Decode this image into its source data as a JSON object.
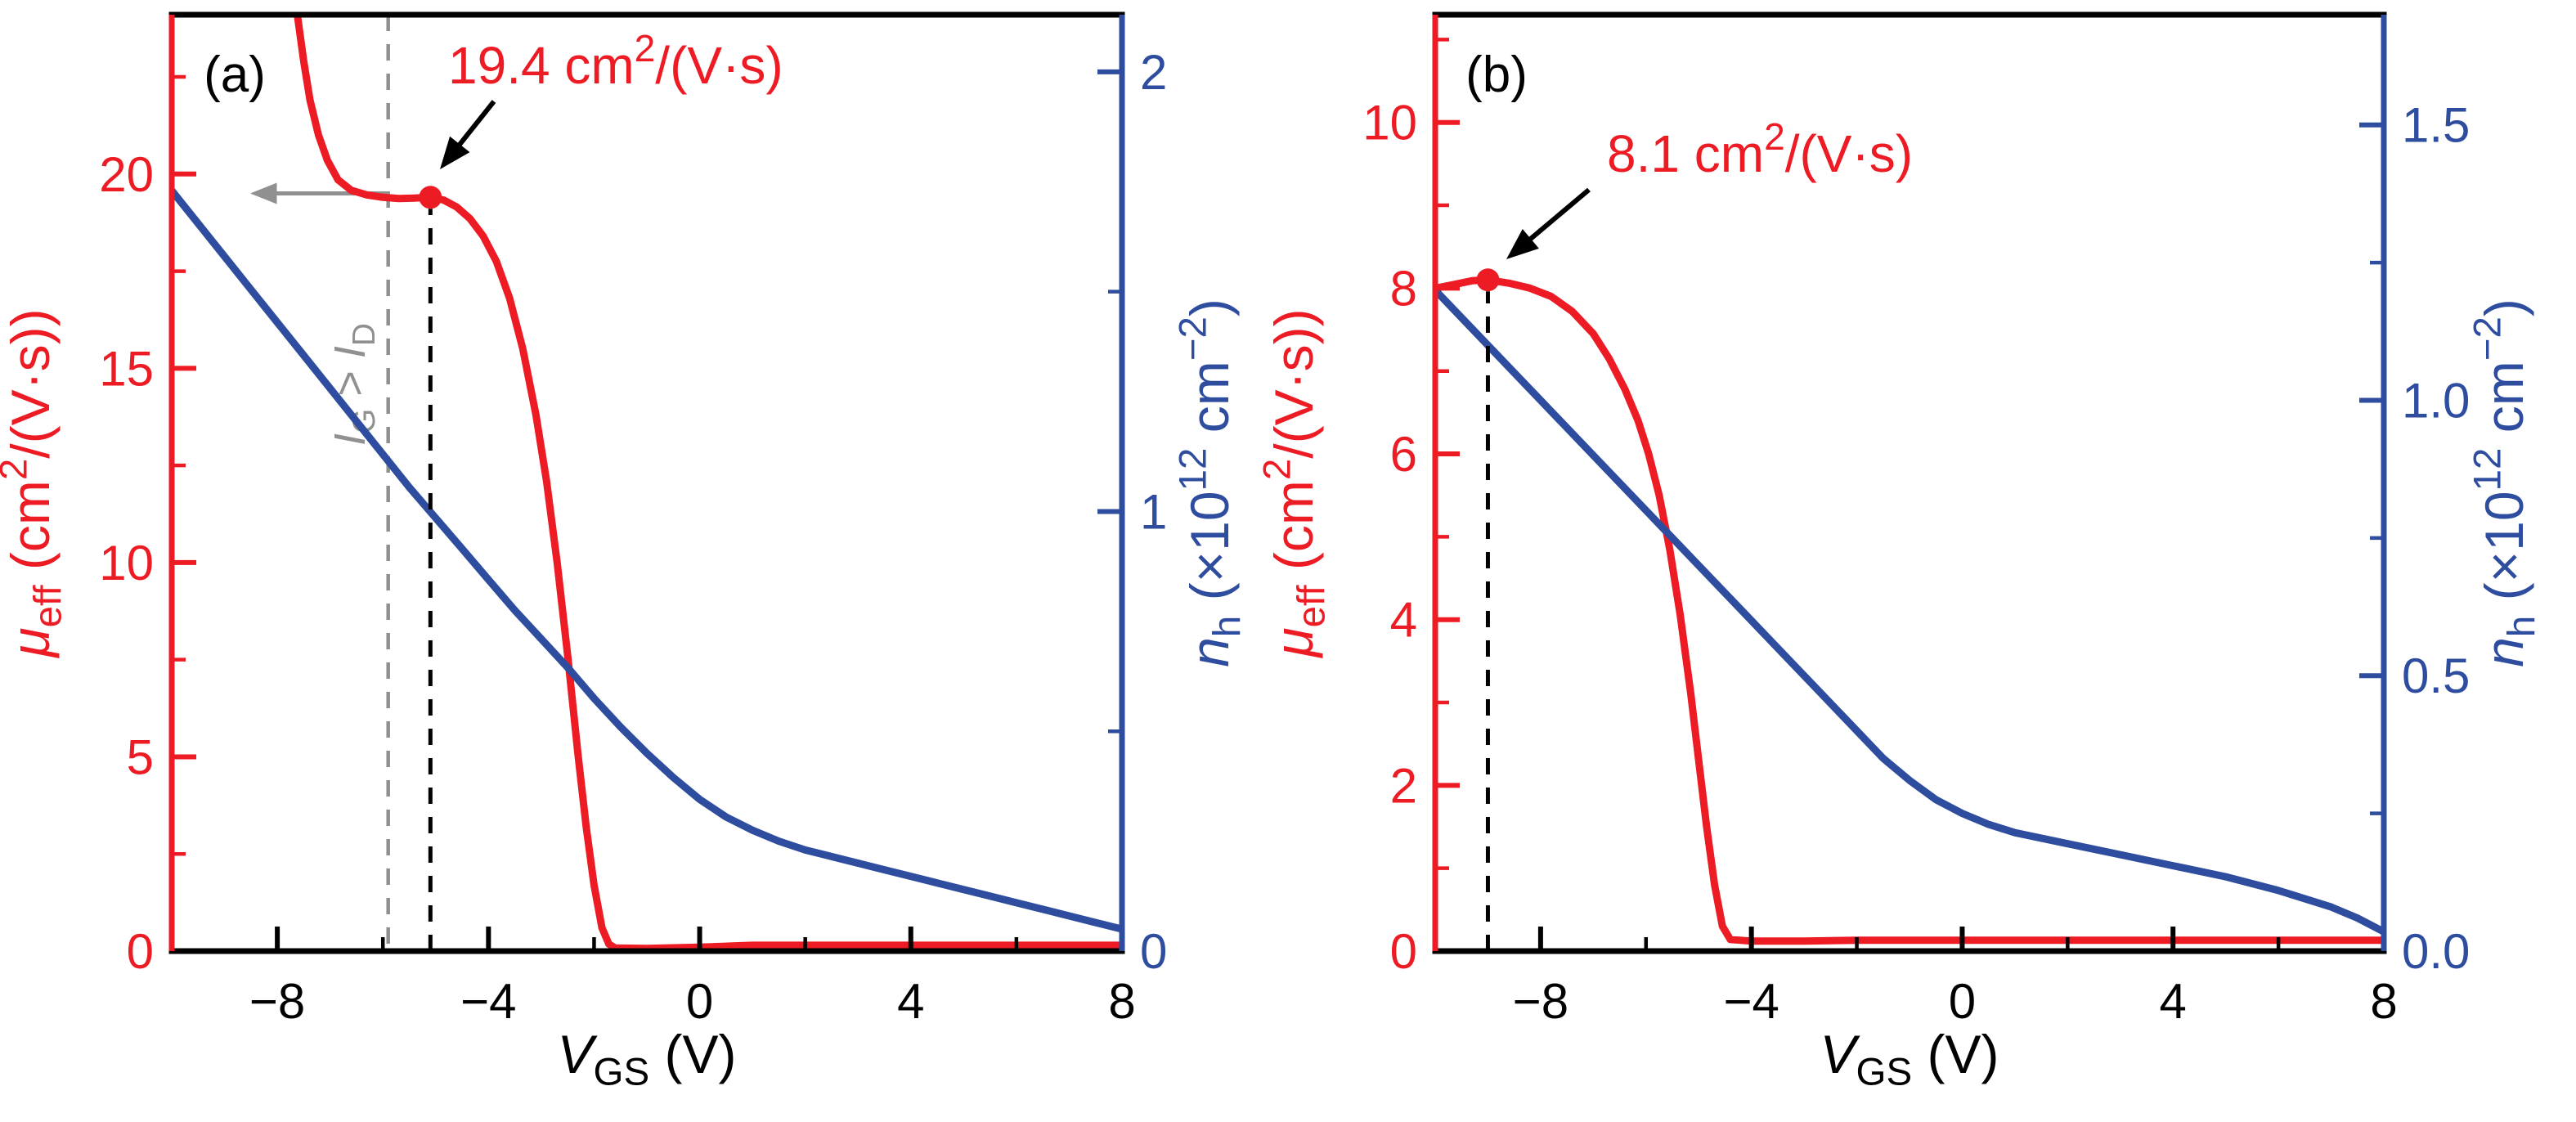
{
  "colors": {
    "red": "#ed1c24",
    "blue": "#2e4d9e",
    "black": "#000000",
    "gray": "#909090",
    "background": "#ffffff"
  },
  "chart_data": [
    {
      "type": "line",
      "panel": "a",
      "panel_label": "(a)",
      "x_axis": {
        "label": "V_GS (V)",
        "label_segments": [
          {
            "t": "V",
            "i": true
          },
          {
            "t": "GS",
            "s": "sub"
          },
          {
            "t": "  (V)"
          }
        ],
        "lim": [
          -10,
          8
        ],
        "ticks": [
          -8,
          -4,
          0,
          4,
          8
        ],
        "tick_labels": [
          "−8",
          "−4",
          "0",
          "4",
          "8"
        ],
        "minor_step": 2,
        "grid": false
      },
      "left_axis": {
        "label": "μ_eff (cm²/(V·s))",
        "label_segments": [
          {
            "t": "μ",
            "i": true
          },
          {
            "t": "eff",
            "s": "sub"
          },
          {
            "t": " (cm"
          },
          {
            "t": "2",
            "s": "sup"
          },
          {
            "t": "/(V·s))"
          }
        ],
        "lim": [
          0,
          24.1
        ],
        "ticks": [
          0,
          5,
          10,
          15,
          20
        ],
        "tick_labels": [
          "0",
          "5",
          "10",
          "15",
          "20"
        ],
        "minor_step": 2.5,
        "color": "red"
      },
      "right_axis": {
        "label": "n_h (×10¹² cm⁻²)",
        "label_segments": [
          {
            "t": "n",
            "i": true
          },
          {
            "t": "h",
            "s": "sub"
          },
          {
            "t": " (×10"
          },
          {
            "t": "12",
            "s": "sup"
          },
          {
            "t": " cm"
          },
          {
            "t": "−2",
            "s": "sup"
          },
          {
            "t": ")"
          }
        ],
        "lim": [
          0,
          2.13
        ],
        "ticks": [
          0,
          1,
          2
        ],
        "tick_labels": [
          "0",
          "1",
          "2"
        ],
        "minor_step": 0.5,
        "color": "blue"
      },
      "series": [
        {
          "name": "mu-eff",
          "axis": "left",
          "color": "red",
          "points": [
            [
              -7.62,
              24.1
            ],
            [
              -7.5,
              22.9
            ],
            [
              -7.38,
              21.9
            ],
            [
              -7.22,
              21.0
            ],
            [
              -7.05,
              20.35
            ],
            [
              -6.85,
              19.85
            ],
            [
              -6.6,
              19.58
            ],
            [
              -6.3,
              19.46
            ],
            [
              -6.0,
              19.4
            ],
            [
              -5.7,
              19.37
            ],
            [
              -5.4,
              19.38
            ],
            [
              -5.1,
              19.4
            ],
            [
              -4.85,
              19.33
            ],
            [
              -4.6,
              19.15
            ],
            [
              -4.35,
              18.85
            ],
            [
              -4.1,
              18.4
            ],
            [
              -3.85,
              17.75
            ],
            [
              -3.6,
              16.8
            ],
            [
              -3.35,
              15.5
            ],
            [
              -3.1,
              13.8
            ],
            [
              -2.9,
              12.1
            ],
            [
              -2.7,
              10.0
            ],
            [
              -2.5,
              7.6
            ],
            [
              -2.3,
              5.0
            ],
            [
              -2.15,
              3.2
            ],
            [
              -2.0,
              1.7
            ],
            [
              -1.85,
              0.6
            ],
            [
              -1.72,
              0.18
            ],
            [
              -1.6,
              0.08
            ],
            [
              -1.0,
              0.07
            ],
            [
              0.0,
              0.1
            ],
            [
              1.0,
              0.15
            ],
            [
              2,
              0.15
            ],
            [
              4,
              0.15
            ],
            [
              6,
              0.15
            ],
            [
              8,
              0.15
            ]
          ]
        },
        {
          "name": "n-h",
          "axis": "right",
          "color": "blue",
          "points": [
            [
              -10,
              1.73
            ],
            [
              -9.5,
              1.655
            ],
            [
              -9,
              1.58
            ],
            [
              -8.5,
              1.505
            ],
            [
              -8,
              1.43
            ],
            [
              -7.5,
              1.355
            ],
            [
              -7,
              1.28
            ],
            [
              -6.5,
              1.205
            ],
            [
              -6,
              1.13
            ],
            [
              -5.5,
              1.055
            ],
            [
              -5,
              0.985
            ],
            [
              -4.5,
              0.915
            ],
            [
              -4,
              0.845
            ],
            [
              -3.5,
              0.775
            ],
            [
              -3,
              0.71
            ],
            [
              -2.5,
              0.645
            ],
            [
              -2,
              0.575
            ],
            [
              -1.5,
              0.51
            ],
            [
              -1,
              0.45
            ],
            [
              -0.5,
              0.395
            ],
            [
              0,
              0.345
            ],
            [
              0.5,
              0.305
            ],
            [
              1,
              0.275
            ],
            [
              1.5,
              0.25
            ],
            [
              2,
              0.23
            ],
            [
              2.5,
              0.215
            ],
            [
              3,
              0.2
            ],
            [
              3.5,
              0.185
            ],
            [
              4,
              0.17
            ],
            [
              4.5,
              0.155
            ],
            [
              5,
              0.14
            ],
            [
              5.5,
              0.125
            ],
            [
              6,
              0.11
            ],
            [
              6.5,
              0.095
            ],
            [
              7,
              0.08
            ],
            [
              7.5,
              0.065
            ],
            [
              8,
              0.05
            ]
          ]
        }
      ],
      "peak": {
        "x": -5.1,
        "y": 19.4,
        "label": "19.4 cm²/(V·s)",
        "label_segments": [
          {
            "t": "19.4 cm"
          },
          {
            "t": "2",
            "s": "sup"
          },
          {
            "t": "/(V·s)"
          }
        ]
      },
      "gate_leak": {
        "boundary_x": -5.9,
        "arrow_y": 19.5,
        "label": "I_G > I_D",
        "label_segments": [
          {
            "t": "I",
            "i": true
          },
          {
            "t": "G",
            "s": "sub"
          },
          {
            "t": " > "
          },
          {
            "t": "I",
            "i": true
          },
          {
            "t": "D",
            "s": "sub"
          }
        ]
      }
    },
    {
      "type": "line",
      "panel": "b",
      "panel_label": "(b)",
      "x_axis": {
        "label": "V_GS (V)",
        "label_segments": [
          {
            "t": "V",
            "i": true
          },
          {
            "t": "GS",
            "s": "sub"
          },
          {
            "t": "  (V)"
          }
        ],
        "lim": [
          -10,
          8
        ],
        "ticks": [
          -8,
          -4,
          0,
          4,
          8
        ],
        "tick_labels": [
          "−8",
          "−4",
          "0",
          "4",
          "8"
        ],
        "minor_step": 2,
        "grid": false
      },
      "left_axis": {
        "label": "μ_eff (cm²/(V·s))",
        "label_segments": [
          {
            "t": "μ",
            "i": true
          },
          {
            "t": "eff",
            "s": "sub"
          },
          {
            "t": " (cm"
          },
          {
            "t": "2",
            "s": "sup"
          },
          {
            "t": "/(V·s))"
          }
        ],
        "lim": [
          0,
          11.3
        ],
        "ticks": [
          0,
          2,
          4,
          6,
          8,
          10
        ],
        "tick_labels": [
          "0",
          "2",
          "4",
          "6",
          "8",
          "10"
        ],
        "minor_step": 1,
        "color": "red"
      },
      "right_axis": {
        "label": "n_h (×10¹² cm⁻²)",
        "label_segments": [
          {
            "t": "n",
            "i": true
          },
          {
            "t": "h",
            "s": "sub"
          },
          {
            "t": " (×10"
          },
          {
            "t": "12",
            "s": "sup"
          },
          {
            "t": " cm"
          },
          {
            "t": "−2",
            "s": "sup"
          },
          {
            "t": ")"
          }
        ],
        "lim": [
          0,
          1.7
        ],
        "ticks": [
          0,
          0.5,
          1,
          1.5
        ],
        "tick_labels": [
          "0.0",
          "0.5",
          "1.0",
          "1.5"
        ],
        "minor_step": 0.25,
        "color": "blue"
      },
      "series": [
        {
          "name": "mu-eff",
          "axis": "left",
          "color": "red",
          "points": [
            [
              -10,
              8.0
            ],
            [
              -9.6,
              8.05
            ],
            [
              -9.3,
              8.09
            ],
            [
              -9.0,
              8.1
            ],
            [
              -8.6,
              8.06
            ],
            [
              -8.2,
              8.0
            ],
            [
              -7.8,
              7.9
            ],
            [
              -7.4,
              7.72
            ],
            [
              -7.0,
              7.45
            ],
            [
              -6.7,
              7.15
            ],
            [
              -6.4,
              6.78
            ],
            [
              -6.15,
              6.4
            ],
            [
              -5.95,
              6.0
            ],
            [
              -5.75,
              5.5
            ],
            [
              -5.55,
              4.85
            ],
            [
              -5.35,
              4.05
            ],
            [
              -5.15,
              3.1
            ],
            [
              -5.0,
              2.3
            ],
            [
              -4.85,
              1.5
            ],
            [
              -4.7,
              0.8
            ],
            [
              -4.55,
              0.3
            ],
            [
              -4.4,
              0.14
            ],
            [
              -4.0,
              0.12
            ],
            [
              -3,
              0.12
            ],
            [
              -2,
              0.13
            ],
            [
              0,
              0.13
            ],
            [
              2,
              0.13
            ],
            [
              4,
              0.13
            ],
            [
              6,
              0.13
            ],
            [
              8,
              0.13
            ]
          ]
        },
        {
          "name": "n-h",
          "axis": "right",
          "color": "blue",
          "points": [
            [
              -10,
              1.2
            ],
            [
              -9,
              1.1
            ],
            [
              -8,
              1.0
            ],
            [
              -7,
              0.9
            ],
            [
              -6,
              0.8
            ],
            [
              -5,
              0.7
            ],
            [
              -4,
              0.6
            ],
            [
              -3,
              0.5
            ],
            [
              -2,
              0.4
            ],
            [
              -1.5,
              0.35
            ],
            [
              -1,
              0.31
            ],
            [
              -0.5,
              0.275
            ],
            [
              0,
              0.25
            ],
            [
              0.5,
              0.23
            ],
            [
              1,
              0.215
            ],
            [
              2,
              0.195
            ],
            [
              3,
              0.175
            ],
            [
              4,
              0.155
            ],
            [
              5,
              0.135
            ],
            [
              6,
              0.11
            ],
            [
              7,
              0.08
            ],
            [
              7.5,
              0.06
            ],
            [
              8,
              0.035
            ]
          ]
        }
      ],
      "peak": {
        "x": -9.0,
        "y": 8.1,
        "label": "8.1 cm²/(V·s)",
        "label_segments": [
          {
            "t": "8.1 cm"
          },
          {
            "t": "2",
            "s": "sup"
          },
          {
            "t": "/(V·s)"
          }
        ]
      }
    }
  ]
}
